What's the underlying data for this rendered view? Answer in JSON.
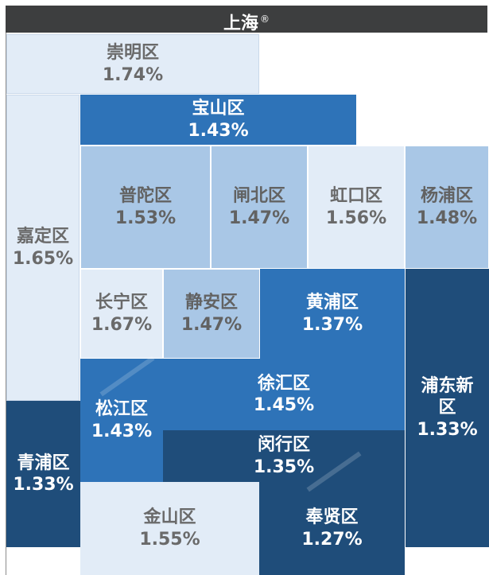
{
  "title": "上海",
  "title_mark": "®",
  "districts": [
    {
      "name": "崇明区",
      "pct": "1.74%"
    },
    {
      "name": "宝山区",
      "pct": "1.43%"
    },
    {
      "name": "嘉定区",
      "pct": "1.65%"
    },
    {
      "name": "普陀区",
      "pct": "1.53%"
    },
    {
      "name": "闸北区",
      "pct": "1.47%"
    },
    {
      "name": "虹口区",
      "pct": "1.56%"
    },
    {
      "name": "杨浦区",
      "pct": "1.48%"
    },
    {
      "name": "长宁区",
      "pct": "1.67%"
    },
    {
      "name": "静安区",
      "pct": "1.47%"
    },
    {
      "name": "黄浦区",
      "pct": "1.37%"
    },
    {
      "name": "浦东新",
      "name2": "区",
      "pct": "1.33%"
    },
    {
      "name": "徐汇区",
      "pct": "1.45%"
    },
    {
      "name": "松江区",
      "pct": "1.43%"
    },
    {
      "name": "闵行区",
      "pct": "1.35%"
    },
    {
      "name": "青浦区",
      "pct": "1.33%"
    },
    {
      "name": "金山区",
      "pct": "1.55%"
    },
    {
      "name": "奉贤区",
      "pct": "1.27%"
    }
  ],
  "colors": {
    "header": "#3d3e3f",
    "very_light": "#e2ecf7",
    "light": "#a9c7e6",
    "medium": "#2e73b8",
    "dark": "#1f4d7a"
  }
}
